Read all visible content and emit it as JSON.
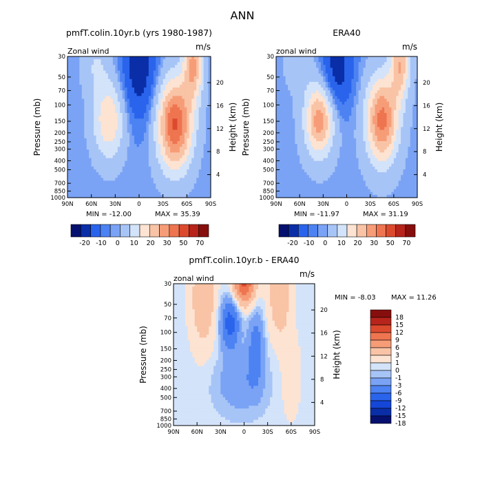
{
  "figure_title": "ANN",
  "chart_data": [
    {
      "type": "heatmap",
      "title": "pmfT.colin.10yr.b (yrs 1980-1987)",
      "corner_left": "Zonal wind",
      "corner_right": "m/s",
      "xlabel": "",
      "ylabel": "Pressure (mb)",
      "ylabel_right": "Height (km)",
      "x_ticks": [
        "90N",
        "60N",
        "30N",
        "0",
        "30S",
        "60S",
        "90S"
      ],
      "y_ticks": [
        "30",
        "50",
        "70",
        "100",
        "150",
        "200",
        "250",
        "300",
        "400",
        "500",
        "700",
        "850",
        "1000"
      ],
      "y_ticks_right": [
        "20",
        "16",
        "12",
        "8",
        "4"
      ],
      "min_label": "MIN = -12.00",
      "max_label": "MAX = 35.39",
      "min": -12.0,
      "max": 35.39,
      "colorbar_levels": [
        "-20",
        "-10",
        "0",
        "10",
        "20",
        "30",
        "50",
        "70"
      ],
      "features": [
        {
          "lat": 38,
          "p": 200,
          "value": 15
        },
        {
          "lat": -45,
          "p": 200,
          "value": 30
        },
        {
          "lat": -70,
          "p": 40,
          "value": 35
        },
        {
          "lat": 0,
          "p": 50,
          "value": -12
        }
      ]
    },
    {
      "type": "heatmap",
      "title": "ERA40",
      "corner_left": "zonal wind",
      "corner_right": "m/s",
      "xlabel": "",
      "ylabel": "Pressure (mb)",
      "ylabel_right": "Height (km)",
      "x_ticks": [
        "90N",
        "60N",
        "30N",
        "0",
        "30S",
        "60S",
        "90S"
      ],
      "y_ticks": [
        "30",
        "50",
        "70",
        "100",
        "150",
        "200",
        "250",
        "300",
        "400",
        "500",
        "700",
        "850",
        "1000"
      ],
      "y_ticks_right": [
        "20",
        "16",
        "12",
        "8",
        "4"
      ],
      "min_label": "MIN = -11.97",
      "max_label": "MAX = 31.19",
      "min": -11.97,
      "max": 31.19,
      "colorbar_levels": [
        "-20",
        "-10",
        "0",
        "10",
        "20",
        "30",
        "50",
        "70"
      ],
      "features": [
        {
          "lat": 35,
          "p": 200,
          "value": 25
        },
        {
          "lat": -45,
          "p": 200,
          "value": 28
        },
        {
          "lat": -70,
          "p": 40,
          "value": 31
        },
        {
          "lat": 15,
          "p": 50,
          "value": -12
        }
      ]
    },
    {
      "type": "heatmap",
      "title": "pmfT.colin.10yr.b - ERA40",
      "corner_left": "zonal wind",
      "corner_right": "m/s",
      "xlabel": "",
      "ylabel": "Pressure (mb)",
      "ylabel_right": "Height (km)",
      "x_ticks": [
        "90N",
        "60N",
        "30N",
        "0",
        "30S",
        "60S",
        "90S"
      ],
      "y_ticks": [
        "30",
        "50",
        "70",
        "100",
        "150",
        "200",
        "250",
        "300",
        "400",
        "500",
        "700",
        "850",
        "1000"
      ],
      "y_ticks_right": [
        "20",
        "16",
        "12",
        "8",
        "4"
      ],
      "min_label": "MIN =   -8.03",
      "max_label": "MAX =   11.26",
      "min": -8.03,
      "max": 11.26,
      "colorbar_levels": [
        "18",
        "15",
        "12",
        "9",
        "6",
        "3",
        "1",
        "0",
        "-1",
        "-3",
        "-6",
        "-9",
        "-12",
        "-15",
        "-18"
      ],
      "features": [
        {
          "lat": 0,
          "p": 35,
          "value": 11
        },
        {
          "lat": -45,
          "p": 40,
          "value": 5
        },
        {
          "lat": 50,
          "p": 40,
          "value": 5
        },
        {
          "lat": 15,
          "p": 80,
          "value": -7
        },
        {
          "lat": -15,
          "p": 150,
          "value": -5
        }
      ]
    }
  ],
  "colors": {
    "diverging": [
      "#06106e",
      "#0a2ea8",
      "#1446d8",
      "#2a64ec",
      "#4c82f2",
      "#7aa3f5",
      "#a7c4f7",
      "#d3e3f9",
      "#fde3d2",
      "#f9c3a6",
      "#f69d78",
      "#ee7550",
      "#dc4a2e",
      "#b6241b",
      "#860f0d"
    ],
    "panel_scale": [
      "#06106e",
      "#0a2ea8",
      "#2a64ec",
      "#4c82f2",
      "#7aa3f5",
      "#a7c4f7",
      "#d3e3f9",
      "#fde3d2",
      "#f9c3a6",
      "#f69d78",
      "#ee7550",
      "#dc4a2e",
      "#b6241b",
      "#860f0d"
    ]
  }
}
